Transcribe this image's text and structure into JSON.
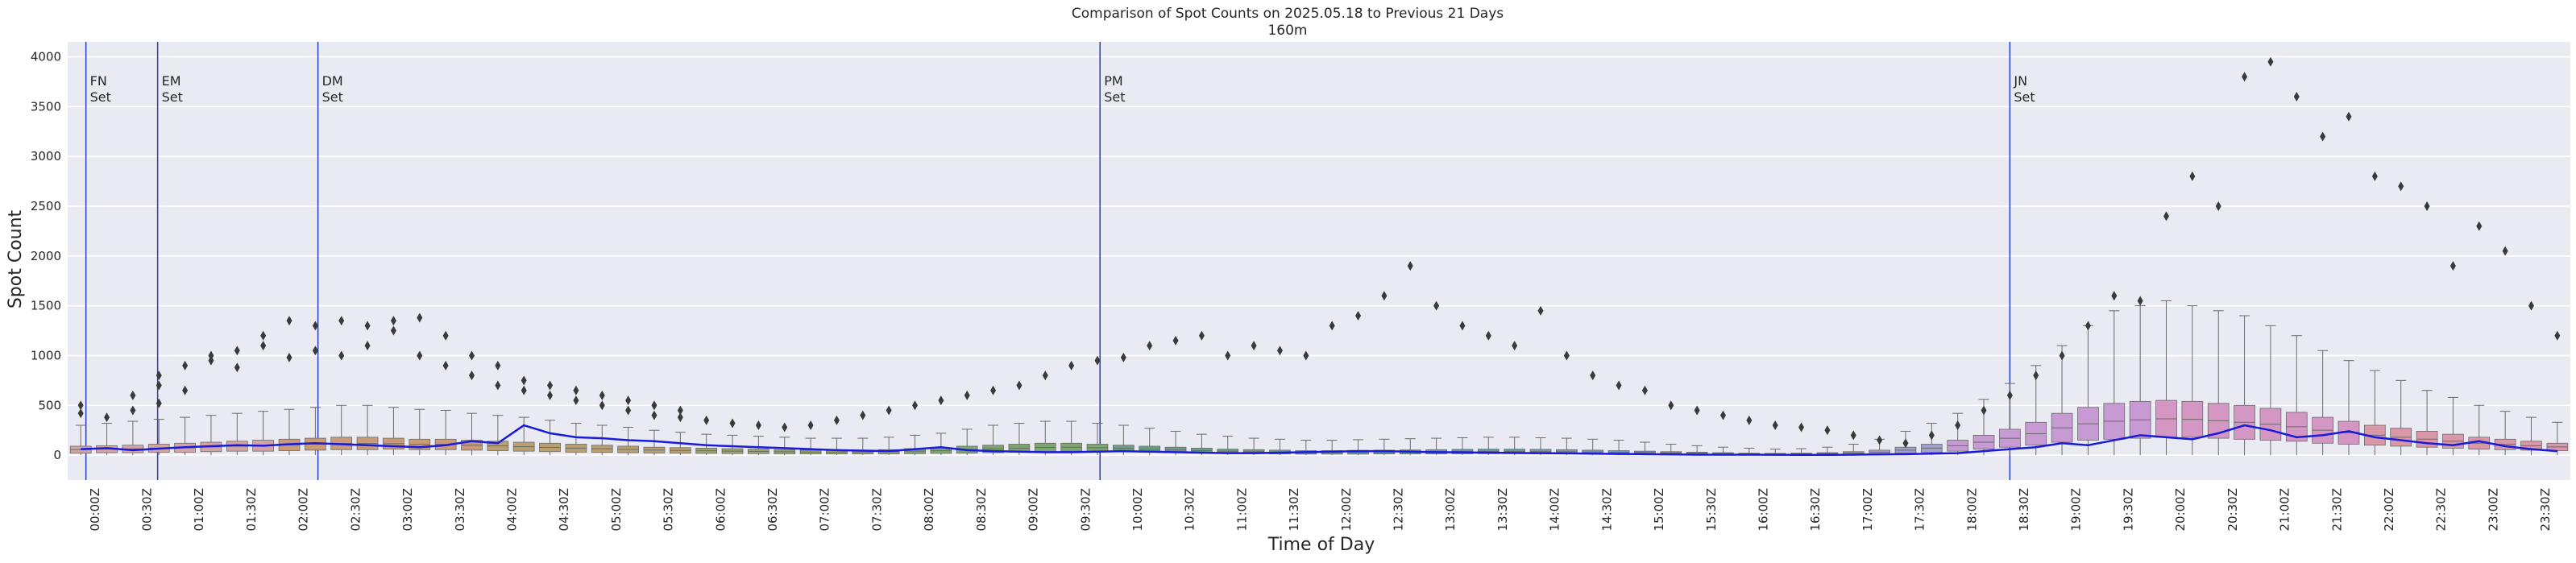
{
  "chart_data": {
    "type": "box",
    "title": "Comparison of Spot Counts on 2025.05.18 to Previous 21 Days",
    "subtitle": "160m",
    "xlabel": "Time of Day",
    "ylabel": "Spot Count",
    "ylim": [
      -250,
      4150
    ],
    "yticks": [
      0,
      500,
      1000,
      1500,
      2000,
      2500,
      3000,
      3500,
      4000
    ],
    "grid": true,
    "slot_minutes": 15,
    "slots_per_day": 96,
    "xtick_labels": [
      "00:00Z",
      "00:30Z",
      "01:00Z",
      "01:30Z",
      "02:00Z",
      "02:30Z",
      "03:00Z",
      "03:30Z",
      "04:00Z",
      "04:30Z",
      "05:00Z",
      "05:30Z",
      "06:00Z",
      "06:30Z",
      "07:00Z",
      "07:30Z",
      "08:00Z",
      "08:30Z",
      "09:00Z",
      "09:30Z",
      "10:00Z",
      "10:30Z",
      "11:00Z",
      "11:30Z",
      "12:00Z",
      "12:30Z",
      "13:00Z",
      "13:30Z",
      "14:00Z",
      "14:30Z",
      "15:00Z",
      "15:30Z",
      "16:00Z",
      "16:30Z",
      "17:00Z",
      "17:30Z",
      "18:00Z",
      "18:30Z",
      "19:00Z",
      "19:30Z",
      "20:00Z",
      "20:30Z",
      "21:00Z",
      "21:30Z",
      "22:00Z",
      "22:30Z",
      "23:00Z",
      "23:30Z"
    ],
    "annotations": [
      {
        "label": "FN Set",
        "line1": "FN",
        "line2": "Set",
        "slot": 0.7
      },
      {
        "label": "EM Set",
        "line1": "EM",
        "line2": "Set",
        "slot": 3.45
      },
      {
        "label": "DM Set",
        "line1": "DM",
        "line2": "Set",
        "slot": 9.6
      },
      {
        "label": "PM Set",
        "line1": "PM",
        "line2": "Set",
        "slot": 39.6
      },
      {
        "label": "JN Set",
        "line1": "JN",
        "line2": "Set",
        "slot": 74.5
      }
    ],
    "boxes": {
      "name": "Previous 21 Days",
      "q1": [
        20,
        25,
        25,
        30,
        30,
        35,
        40,
        40,
        45,
        50,
        55,
        55,
        60,
        55,
        55,
        50,
        45,
        40,
        35,
        30,
        28,
        25,
        22,
        20,
        18,
        16,
        15,
        14,
        13,
        12,
        12,
        12,
        15,
        18,
        20,
        25,
        30,
        35,
        40,
        40,
        35,
        30,
        25,
        20,
        18,
        15,
        12,
        10,
        10,
        10,
        12,
        12,
        13,
        14,
        15,
        15,
        14,
        13,
        12,
        11,
        10,
        9,
        8,
        7,
        6,
        5,
        5,
        6,
        8,
        10,
        20,
        30,
        40,
        60,
        80,
        100,
        130,
        150,
        160,
        170,
        180,
        180,
        170,
        160,
        150,
        140,
        120,
        110,
        100,
        90,
        80,
        70,
        60,
        55,
        50,
        45
      ],
      "q3": [
        90,
        95,
        100,
        110,
        120,
        130,
        140,
        150,
        160,
        170,
        180,
        180,
        170,
        160,
        160,
        150,
        140,
        130,
        120,
        110,
        100,
        90,
        80,
        75,
        70,
        65,
        60,
        55,
        50,
        50,
        50,
        55,
        65,
        75,
        90,
        100,
        110,
        120,
        120,
        110,
        100,
        90,
        80,
        70,
        60,
        55,
        50,
        45,
        45,
        48,
        50,
        52,
        55,
        58,
        60,
        60,
        58,
        55,
        50,
        45,
        40,
        35,
        30,
        25,
        20,
        18,
        20,
        25,
        35,
        50,
        80,
        110,
        150,
        200,
        260,
        330,
        420,
        480,
        520,
        540,
        550,
        540,
        520,
        500,
        470,
        430,
        380,
        340,
        300,
        270,
        240,
        210,
        180,
        160,
        140,
        120
      ],
      "whisk_high": [
        300,
        320,
        340,
        360,
        380,
        400,
        420,
        440,
        460,
        480,
        500,
        500,
        480,
        460,
        450,
        420,
        400,
        380,
        350,
        320,
        300,
        280,
        250,
        230,
        210,
        200,
        190,
        180,
        170,
        170,
        170,
        180,
        200,
        220,
        260,
        300,
        320,
        340,
        340,
        320,
        300,
        270,
        240,
        210,
        190,
        170,
        160,
        150,
        150,
        155,
        160,
        165,
        170,
        175,
        180,
        180,
        175,
        170,
        160,
        150,
        130,
        110,
        95,
        80,
        70,
        60,
        65,
        80,
        110,
        160,
        240,
        320,
        420,
        560,
        720,
        900,
        1100,
        1300,
        1450,
        1500,
        1550,
        1500,
        1450,
        1400,
        1300,
        1200,
        1050,
        950,
        850,
        750,
        650,
        580,
        500,
        440,
        380,
        330
      ],
      "outliers": [
        [
          0,
          420
        ],
        [
          0,
          500
        ],
        [
          1,
          380
        ],
        [
          2,
          450
        ],
        [
          2,
          600
        ],
        [
          3,
          520
        ],
        [
          3,
          700
        ],
        [
          3,
          800
        ],
        [
          4,
          650
        ],
        [
          4,
          900
        ],
        [
          5,
          950
        ],
        [
          5,
          1000
        ],
        [
          6,
          880
        ],
        [
          6,
          1050
        ],
        [
          7,
          1100
        ],
        [
          7,
          1200
        ],
        [
          8,
          980
        ],
        [
          8,
          1350
        ],
        [
          9,
          1050
        ],
        [
          9,
          1300
        ],
        [
          10,
          1000
        ],
        [
          10,
          1350
        ],
        [
          11,
          1100
        ],
        [
          11,
          1300
        ],
        [
          12,
          1250
        ],
        [
          12,
          1350
        ],
        [
          13,
          1000
        ],
        [
          13,
          1380
        ],
        [
          14,
          900
        ],
        [
          14,
          1200
        ],
        [
          15,
          800
        ],
        [
          15,
          1000
        ],
        [
          16,
          700
        ],
        [
          16,
          900
        ],
        [
          17,
          650
        ],
        [
          17,
          750
        ],
        [
          18,
          600
        ],
        [
          18,
          700
        ],
        [
          19,
          550
        ],
        [
          19,
          650
        ],
        [
          20,
          500
        ],
        [
          20,
          600
        ],
        [
          21,
          450
        ],
        [
          21,
          550
        ],
        [
          22,
          400
        ],
        [
          22,
          500
        ],
        [
          23,
          380
        ],
        [
          23,
          450
        ],
        [
          24,
          350
        ],
        [
          25,
          320
        ],
        [
          26,
          300
        ],
        [
          27,
          280
        ],
        [
          28,
          300
        ],
        [
          29,
          350
        ],
        [
          30,
          400
        ],
        [
          31,
          450
        ],
        [
          32,
          500
        ],
        [
          33,
          550
        ],
        [
          34,
          600
        ],
        [
          35,
          650
        ],
        [
          36,
          700
        ],
        [
          37,
          800
        ],
        [
          38,
          900
        ],
        [
          39,
          950
        ],
        [
          40,
          980
        ],
        [
          41,
          1100
        ],
        [
          42,
          1150
        ],
        [
          43,
          1200
        ],
        [
          44,
          1000
        ],
        [
          45,
          1100
        ],
        [
          46,
          1050
        ],
        [
          47,
          1000
        ],
        [
          48,
          1300
        ],
        [
          49,
          1400
        ],
        [
          50,
          1600
        ],
        [
          51,
          1900
        ],
        [
          52,
          1500
        ],
        [
          53,
          1300
        ],
        [
          54,
          1200
        ],
        [
          55,
          1100
        ],
        [
          56,
          1450
        ],
        [
          57,
          1000
        ],
        [
          58,
          800
        ],
        [
          59,
          700
        ],
        [
          60,
          650
        ],
        [
          61,
          500
        ],
        [
          62,
          450
        ],
        [
          63,
          400
        ],
        [
          64,
          350
        ],
        [
          65,
          300
        ],
        [
          66,
          280
        ],
        [
          67,
          250
        ],
        [
          68,
          200
        ],
        [
          69,
          150
        ],
        [
          70,
          120
        ],
        [
          71,
          200
        ],
        [
          72,
          300
        ],
        [
          73,
          450
        ],
        [
          74,
          600
        ],
        [
          75,
          800
        ],
        [
          76,
          1000
        ],
        [
          77,
          1300
        ],
        [
          78,
          1600
        ],
        [
          79,
          1550
        ],
        [
          80,
          2400
        ],
        [
          81,
          2800
        ],
        [
          82,
          2500
        ],
        [
          83,
          3800
        ],
        [
          84,
          3950
        ],
        [
          85,
          3600
        ],
        [
          86,
          3200
        ],
        [
          87,
          3400
        ],
        [
          88,
          2800
        ],
        [
          89,
          2700
        ],
        [
          90,
          2500
        ],
        [
          91,
          1900
        ],
        [
          92,
          2300
        ],
        [
          93,
          2050
        ],
        [
          94,
          1500
        ],
        [
          95,
          1200
        ]
      ]
    },
    "line_series": {
      "name": "2025.05.18",
      "values": [
        60,
        70,
        50,
        65,
        80,
        90,
        100,
        95,
        110,
        120,
        110,
        100,
        90,
        80,
        100,
        140,
        120,
        300,
        220,
        180,
        170,
        150,
        140,
        120,
        100,
        90,
        80,
        70,
        60,
        50,
        45,
        40,
        60,
        80,
        50,
        40,
        35,
        30,
        30,
        35,
        40,
        35,
        30,
        25,
        20,
        20,
        25,
        30,
        35,
        40,
        40,
        35,
        30,
        28,
        25,
        22,
        20,
        18,
        15,
        12,
        10,
        8,
        5,
        5,
        5,
        4,
        3,
        3,
        5,
        8,
        10,
        15,
        20,
        40,
        60,
        80,
        120,
        100,
        150,
        200,
        180,
        160,
        220,
        300,
        250,
        180,
        200,
        240,
        180,
        150,
        120,
        100,
        140,
        90,
        60,
        40
      ]
    }
  }
}
